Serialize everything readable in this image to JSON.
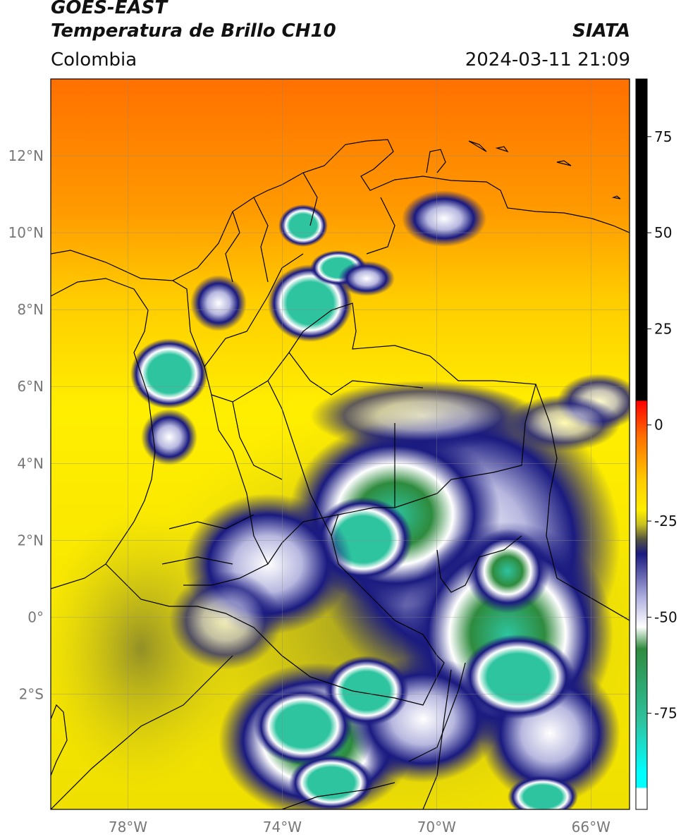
{
  "header": {
    "satellite": "GOES-EAST",
    "product": "Temperatura de Brillo CH10",
    "region": "Colombia",
    "org": "SIATA",
    "datetime": "2024-03-11 21:09"
  },
  "map": {
    "lon_range": [
      -80,
      -65
    ],
    "lat_range": [
      -5,
      14
    ],
    "lat_ticks": [
      {
        "value": 12,
        "label": "12°N"
      },
      {
        "value": 10,
        "label": "10°N"
      },
      {
        "value": 8,
        "label": "8°N"
      },
      {
        "value": 6,
        "label": "6°N"
      },
      {
        "value": 4,
        "label": "4°N"
      },
      {
        "value": 2,
        "label": "2°N"
      },
      {
        "value": 0,
        "label": "0°"
      },
      {
        "value": -2,
        "label": "2°S"
      }
    ],
    "lon_ticks": [
      {
        "value": -78,
        "label": "78°W"
      },
      {
        "value": -74,
        "label": "74°W"
      },
      {
        "value": -70,
        "label": "70°W"
      },
      {
        "value": -66,
        "label": "66°W"
      }
    ],
    "grid": true,
    "colors": {
      "warm": "#ff7a00",
      "mid": "#ffee00",
      "cold_blue": "#1a1a80",
      "white": "#ffffff",
      "green": "#2e8b3e",
      "teal": "#2ec4a0"
    }
  },
  "colorbar": {
    "ticks": [
      {
        "value": 75,
        "label": "75"
      },
      {
        "value": 50,
        "label": "50"
      },
      {
        "value": 25,
        "label": "25"
      },
      {
        "value": 0,
        "label": "0"
      },
      {
        "value": -25,
        "label": "-25"
      },
      {
        "value": -50,
        "label": "-50"
      },
      {
        "value": -75,
        "label": "-75"
      }
    ],
    "range": [
      -100,
      90
    ]
  }
}
